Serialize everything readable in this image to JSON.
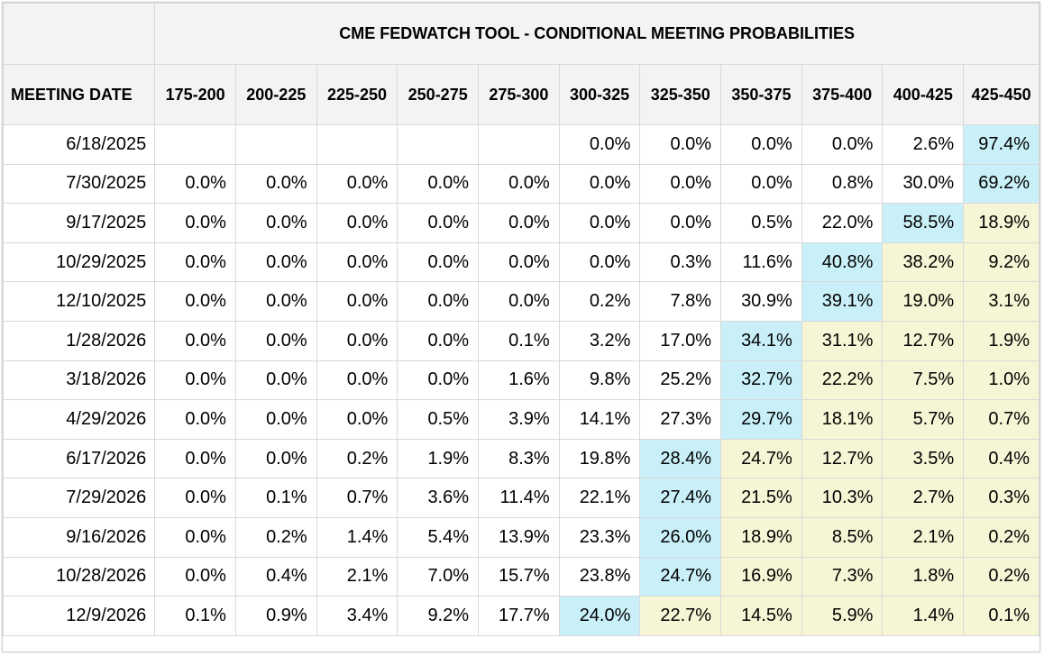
{
  "chart_data": {
    "type": "table",
    "title": "CME FEDWATCH TOOL - CONDITIONAL MEETING PROBABILITIES",
    "row_header_label": "MEETING DATE",
    "columns": [
      "175-200",
      "200-225",
      "225-250",
      "250-275",
      "275-300",
      "300-325",
      "325-350",
      "350-375",
      "375-400",
      "400-425",
      "425-450"
    ],
    "rows": [
      {
        "date": "6/18/2025",
        "values": [
          "",
          "",
          "",
          "",
          "",
          "0.0%",
          "0.0%",
          "0.0%",
          "0.0%",
          "2.6%",
          "97.4%"
        ],
        "highlight": [
          10
        ],
        "secondary": []
      },
      {
        "date": "7/30/2025",
        "values": [
          "0.0%",
          "0.0%",
          "0.0%",
          "0.0%",
          "0.0%",
          "0.0%",
          "0.0%",
          "0.0%",
          "0.8%",
          "30.0%",
          "69.2%"
        ],
        "highlight": [
          10
        ],
        "secondary": []
      },
      {
        "date": "9/17/2025",
        "values": [
          "0.0%",
          "0.0%",
          "0.0%",
          "0.0%",
          "0.0%",
          "0.0%",
          "0.0%",
          "0.5%",
          "22.0%",
          "58.5%",
          "18.9%"
        ],
        "highlight": [
          9
        ],
        "secondary": [
          10
        ]
      },
      {
        "date": "10/29/2025",
        "values": [
          "0.0%",
          "0.0%",
          "0.0%",
          "0.0%",
          "0.0%",
          "0.0%",
          "0.3%",
          "11.6%",
          "40.8%",
          "38.2%",
          "9.2%"
        ],
        "highlight": [
          8
        ],
        "secondary": [
          9,
          10
        ]
      },
      {
        "date": "12/10/2025",
        "values": [
          "0.0%",
          "0.0%",
          "0.0%",
          "0.0%",
          "0.0%",
          "0.2%",
          "7.8%",
          "30.9%",
          "39.1%",
          "19.0%",
          "3.1%"
        ],
        "highlight": [
          8
        ],
        "secondary": [
          9,
          10
        ]
      },
      {
        "date": "1/28/2026",
        "values": [
          "0.0%",
          "0.0%",
          "0.0%",
          "0.0%",
          "0.1%",
          "3.2%",
          "17.0%",
          "34.1%",
          "31.1%",
          "12.7%",
          "1.9%"
        ],
        "highlight": [
          7
        ],
        "secondary": [
          8,
          9,
          10
        ]
      },
      {
        "date": "3/18/2026",
        "values": [
          "0.0%",
          "0.0%",
          "0.0%",
          "0.0%",
          "1.6%",
          "9.8%",
          "25.2%",
          "32.7%",
          "22.2%",
          "7.5%",
          "1.0%"
        ],
        "highlight": [
          7
        ],
        "secondary": [
          8,
          9,
          10
        ]
      },
      {
        "date": "4/29/2026",
        "values": [
          "0.0%",
          "0.0%",
          "0.0%",
          "0.5%",
          "3.9%",
          "14.1%",
          "27.3%",
          "29.7%",
          "18.1%",
          "5.7%",
          "0.7%"
        ],
        "highlight": [
          7
        ],
        "secondary": [
          8,
          9,
          10
        ]
      },
      {
        "date": "6/17/2026",
        "values": [
          "0.0%",
          "0.0%",
          "0.2%",
          "1.9%",
          "8.3%",
          "19.8%",
          "28.4%",
          "24.7%",
          "12.7%",
          "3.5%",
          "0.4%"
        ],
        "highlight": [
          6
        ],
        "secondary": [
          7,
          8,
          9,
          10
        ]
      },
      {
        "date": "7/29/2026",
        "values": [
          "0.0%",
          "0.1%",
          "0.7%",
          "3.6%",
          "11.4%",
          "22.1%",
          "27.4%",
          "21.5%",
          "10.3%",
          "2.7%",
          "0.3%"
        ],
        "highlight": [
          6
        ],
        "secondary": [
          7,
          8,
          9,
          10
        ]
      },
      {
        "date": "9/16/2026",
        "values": [
          "0.0%",
          "0.2%",
          "1.4%",
          "5.4%",
          "13.9%",
          "23.3%",
          "26.0%",
          "18.9%",
          "8.5%",
          "2.1%",
          "0.2%"
        ],
        "highlight": [
          6
        ],
        "secondary": [
          7,
          8,
          9,
          10
        ]
      },
      {
        "date": "10/28/2026",
        "values": [
          "0.0%",
          "0.4%",
          "2.1%",
          "7.0%",
          "15.7%",
          "23.8%",
          "24.7%",
          "16.9%",
          "7.3%",
          "1.8%",
          "0.2%"
        ],
        "highlight": [
          6
        ],
        "secondary": [
          7,
          8,
          9,
          10
        ]
      },
      {
        "date": "12/9/2026",
        "values": [
          "0.1%",
          "0.9%",
          "3.4%",
          "9.2%",
          "17.7%",
          "24.0%",
          "22.7%",
          "14.5%",
          "5.9%",
          "1.4%",
          "0.1%"
        ],
        "highlight": [
          5
        ],
        "secondary": [
          6,
          7,
          8,
          9,
          10
        ]
      }
    ],
    "colors": {
      "highlight": "#c9f0f8",
      "secondary": "#f6f6d6",
      "header_bg": "#f3f3f3",
      "grid": "#d9d9d9"
    }
  }
}
